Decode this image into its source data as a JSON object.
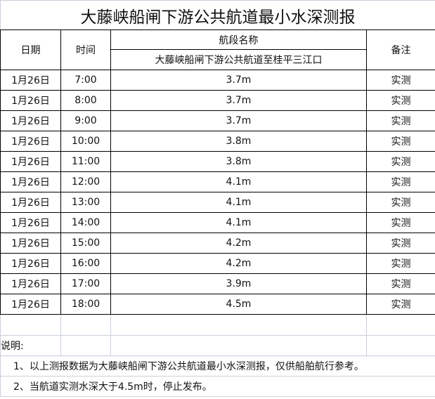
{
  "title": "大藤峡船闸下游公共航道最小水深测报",
  "headers": {
    "date": "日期",
    "time": "时间",
    "section_label": "航段名称",
    "section_name": "大藤峡船闸下游公共航道至桂平三江口",
    "remark": "备注"
  },
  "rows": [
    {
      "date": "1月26日",
      "time": "7:00",
      "depth": "3.7m",
      "remark": "实测"
    },
    {
      "date": "1月26日",
      "time": "8:00",
      "depth": "3.7m",
      "remark": "实测"
    },
    {
      "date": "1月26日",
      "time": "9:00",
      "depth": "3.7m",
      "remark": "实测"
    },
    {
      "date": "1月26日",
      "time": "10:00",
      "depth": "3.8m",
      "remark": "实测"
    },
    {
      "date": "1月26日",
      "time": "11:00",
      "depth": "3.8m",
      "remark": "实测"
    },
    {
      "date": "1月26日",
      "time": "12:00",
      "depth": "4.1m",
      "remark": "实测"
    },
    {
      "date": "1月26日",
      "time": "13:00",
      "depth": "4.1m",
      "remark": "实测"
    },
    {
      "date": "1月26日",
      "time": "14:00",
      "depth": "4.1m",
      "remark": "实测"
    },
    {
      "date": "1月26日",
      "time": "15:00",
      "depth": "4.2m",
      "remark": "实测"
    },
    {
      "date": "1月26日",
      "time": "16:00",
      "depth": "4.2m",
      "remark": "实测"
    },
    {
      "date": "1月26日",
      "time": "17:00",
      "depth": "3.9m",
      "remark": "实测"
    },
    {
      "date": "1月26日",
      "time": "18:00",
      "depth": "4.5m",
      "remark": "实测"
    }
  ],
  "notes": {
    "label": "说明:",
    "items": [
      "1、以上测报数据为大藤峡船闸下游公共航道最小水深测报，仅供船舶航行参考。",
      "2、当航道实测水深大于4.5m时，停止发布。"
    ]
  }
}
